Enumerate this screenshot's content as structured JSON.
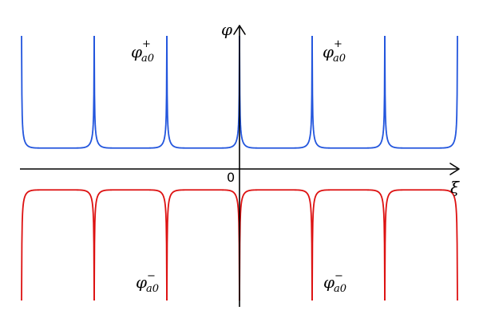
{
  "chart_data": {
    "type": "line",
    "title": "",
    "xlabel": "ξ",
    "ylabel": "φ",
    "origin_label": "0",
    "grid": false,
    "legend": "none",
    "x_period": 1,
    "x_range": [
      -3,
      3
    ],
    "series": [
      {
        "sign": "upper",
        "color": "#2255dd",
        "label_parts": {
          "base": "φ",
          "sub": "a0",
          "sup": "+"
        },
        "label_positions": [
          "left",
          "right"
        ],
        "min_value": 0.75,
        "branches": [
          [
            -3,
            -2
          ],
          [
            -2,
            -1
          ],
          [
            -1,
            0
          ],
          [
            0,
            1
          ],
          [
            1,
            2
          ],
          [
            2,
            3
          ]
        ]
      },
      {
        "sign": "lower",
        "color": "#dd1111",
        "label_parts": {
          "base": "φ",
          "sub": "a0",
          "sup": "−"
        },
        "label_positions": [
          "left",
          "right"
        ],
        "max_value": -0.75,
        "branches": [
          [
            -3,
            -2
          ],
          [
            -2,
            -1
          ],
          [
            -1,
            0
          ],
          [
            0,
            1
          ],
          [
            1,
            2
          ],
          [
            2,
            3
          ]
        ]
      }
    ]
  }
}
